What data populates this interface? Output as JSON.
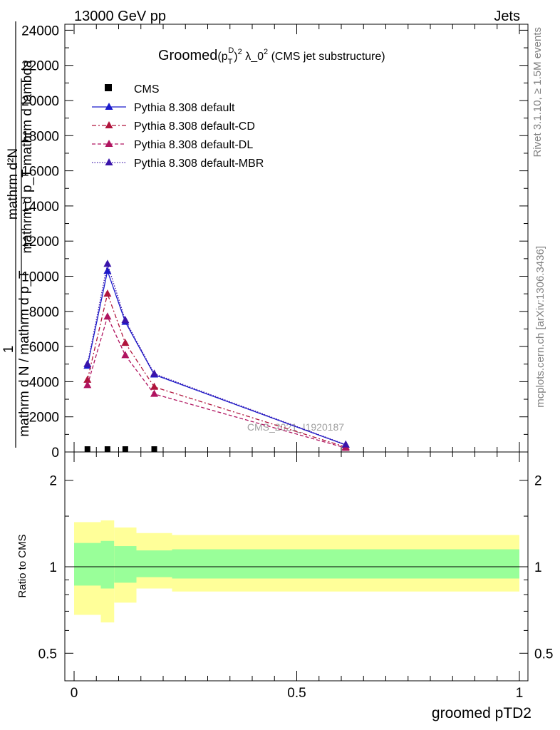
{
  "header": {
    "beam_label": "13000 GeV pp",
    "process_label": "Jets",
    "side_top": "Rivet 3.1.10, ≥ 1.5M events",
    "side_bottom": "mcplots.cern.ch [arXiv:1306.3436]"
  },
  "chart_data": [
    {
      "type": "line",
      "title": "Groomed (p_T^D)^2 λ_0^2 (CMS jet substructure)",
      "title_main": "Groomed",
      "title_sym": "(p",
      "title_sub": "T",
      "title_sup": "D",
      "title_close": ")",
      "title_pow": "2",
      "title_lambda": " λ_0",
      "title_tail": " (CMS jet substructure)",
      "watermark": "CMS_2021_I1920187",
      "ylabel_line1": "mathrm d²N",
      "ylabel_line2": "mathrm d p_T mathrm d lambda",
      "ylabel_prefix": "1",
      "ylabel_denominator": "mathrm d N / mathrm d p_T",
      "xlim": [
        0,
        1
      ],
      "ylim": [
        0,
        24000
      ],
      "yticks": [
        0,
        2000,
        4000,
        6000,
        8000,
        10000,
        12000,
        14000,
        16000,
        18000,
        20000,
        22000,
        24000
      ],
      "ytick_labels": [
        "0",
        "2000",
        "4000",
        "6000",
        "8000",
        "10000",
        "12000",
        "14000",
        "16000",
        "18000",
        "20000",
        "22000",
        "24000"
      ],
      "legend": [
        "CMS",
        "Pythia 8.308 default",
        "Pythia 8.308 default-CD",
        "Pythia 8.308 default-DL",
        "Pythia 8.308 default-MBR"
      ],
      "series": [
        {
          "name": "CMS",
          "color": "#000000",
          "marker": "square",
          "x": [
            0.03,
            0.075,
            0.115,
            0.18
          ],
          "y": [
            0,
            0,
            0,
            0
          ]
        },
        {
          "name": "Pythia 8.308 default",
          "color": "#1a1acc",
          "dash": "none",
          "marker": "triangle",
          "x": [
            0.03,
            0.075,
            0.115,
            0.18,
            0.61
          ],
          "y": [
            4900,
            10300,
            7400,
            4400,
            400
          ]
        },
        {
          "name": "Pythia 8.308 default-CD",
          "color": "#b0143c",
          "dash": "6,3,2,3",
          "marker": "triangle",
          "x": [
            0.03,
            0.075,
            0.115,
            0.18,
            0.61
          ],
          "y": [
            4100,
            9000,
            6200,
            3700,
            280
          ]
        },
        {
          "name": "Pythia 8.308 default-DL",
          "color": "#b01460",
          "dash": "5,3",
          "marker": "triangle",
          "x": [
            0.03,
            0.075,
            0.115,
            0.18,
            0.61
          ],
          "y": [
            3800,
            7700,
            5500,
            3300,
            230
          ]
        },
        {
          "name": "Pythia 8.308 default-MBR",
          "color": "#3a14aa",
          "dash": "1.5,2",
          "marker": "triangle",
          "x": [
            0.03,
            0.075,
            0.115,
            0.18,
            0.61
          ],
          "y": [
            5000,
            10700,
            7500,
            4450,
            420
          ]
        }
      ]
    },
    {
      "type": "area",
      "ylabel": "Ratio to CMS",
      "xlabel": "groomed pTD2",
      "xlim": [
        0,
        1
      ],
      "ylim": [
        0.35,
        2.3
      ],
      "yscale": "log",
      "yticks": [
        0.5,
        1,
        2
      ],
      "ytick_labels": [
        "0.5",
        "1",
        "2"
      ],
      "xticks": [
        0,
        0.5,
        1
      ],
      "xtick_labels": [
        "0",
        "0.5",
        "1"
      ],
      "reference_line": 1,
      "bins": [
        {
          "x0": 0.0,
          "x1": 0.06,
          "yellow": [
            0.68,
            1.43
          ],
          "green": [
            0.86,
            1.21
          ]
        },
        {
          "x0": 0.06,
          "x1": 0.09,
          "yellow": [
            0.64,
            1.45
          ],
          "green": [
            0.84,
            1.23
          ]
        },
        {
          "x0": 0.09,
          "x1": 0.14,
          "yellow": [
            0.75,
            1.37
          ],
          "green": [
            0.88,
            1.18
          ]
        },
        {
          "x0": 0.14,
          "x1": 0.22,
          "yellow": [
            0.84,
            1.31
          ],
          "green": [
            0.92,
            1.14
          ]
        },
        {
          "x0": 0.22,
          "x1": 1.0,
          "yellow": [
            0.82,
            1.29
          ],
          "green": [
            0.91,
            1.15
          ]
        }
      ],
      "colors": {
        "yellow": "#ffff99",
        "green": "#99ff99"
      }
    }
  ]
}
